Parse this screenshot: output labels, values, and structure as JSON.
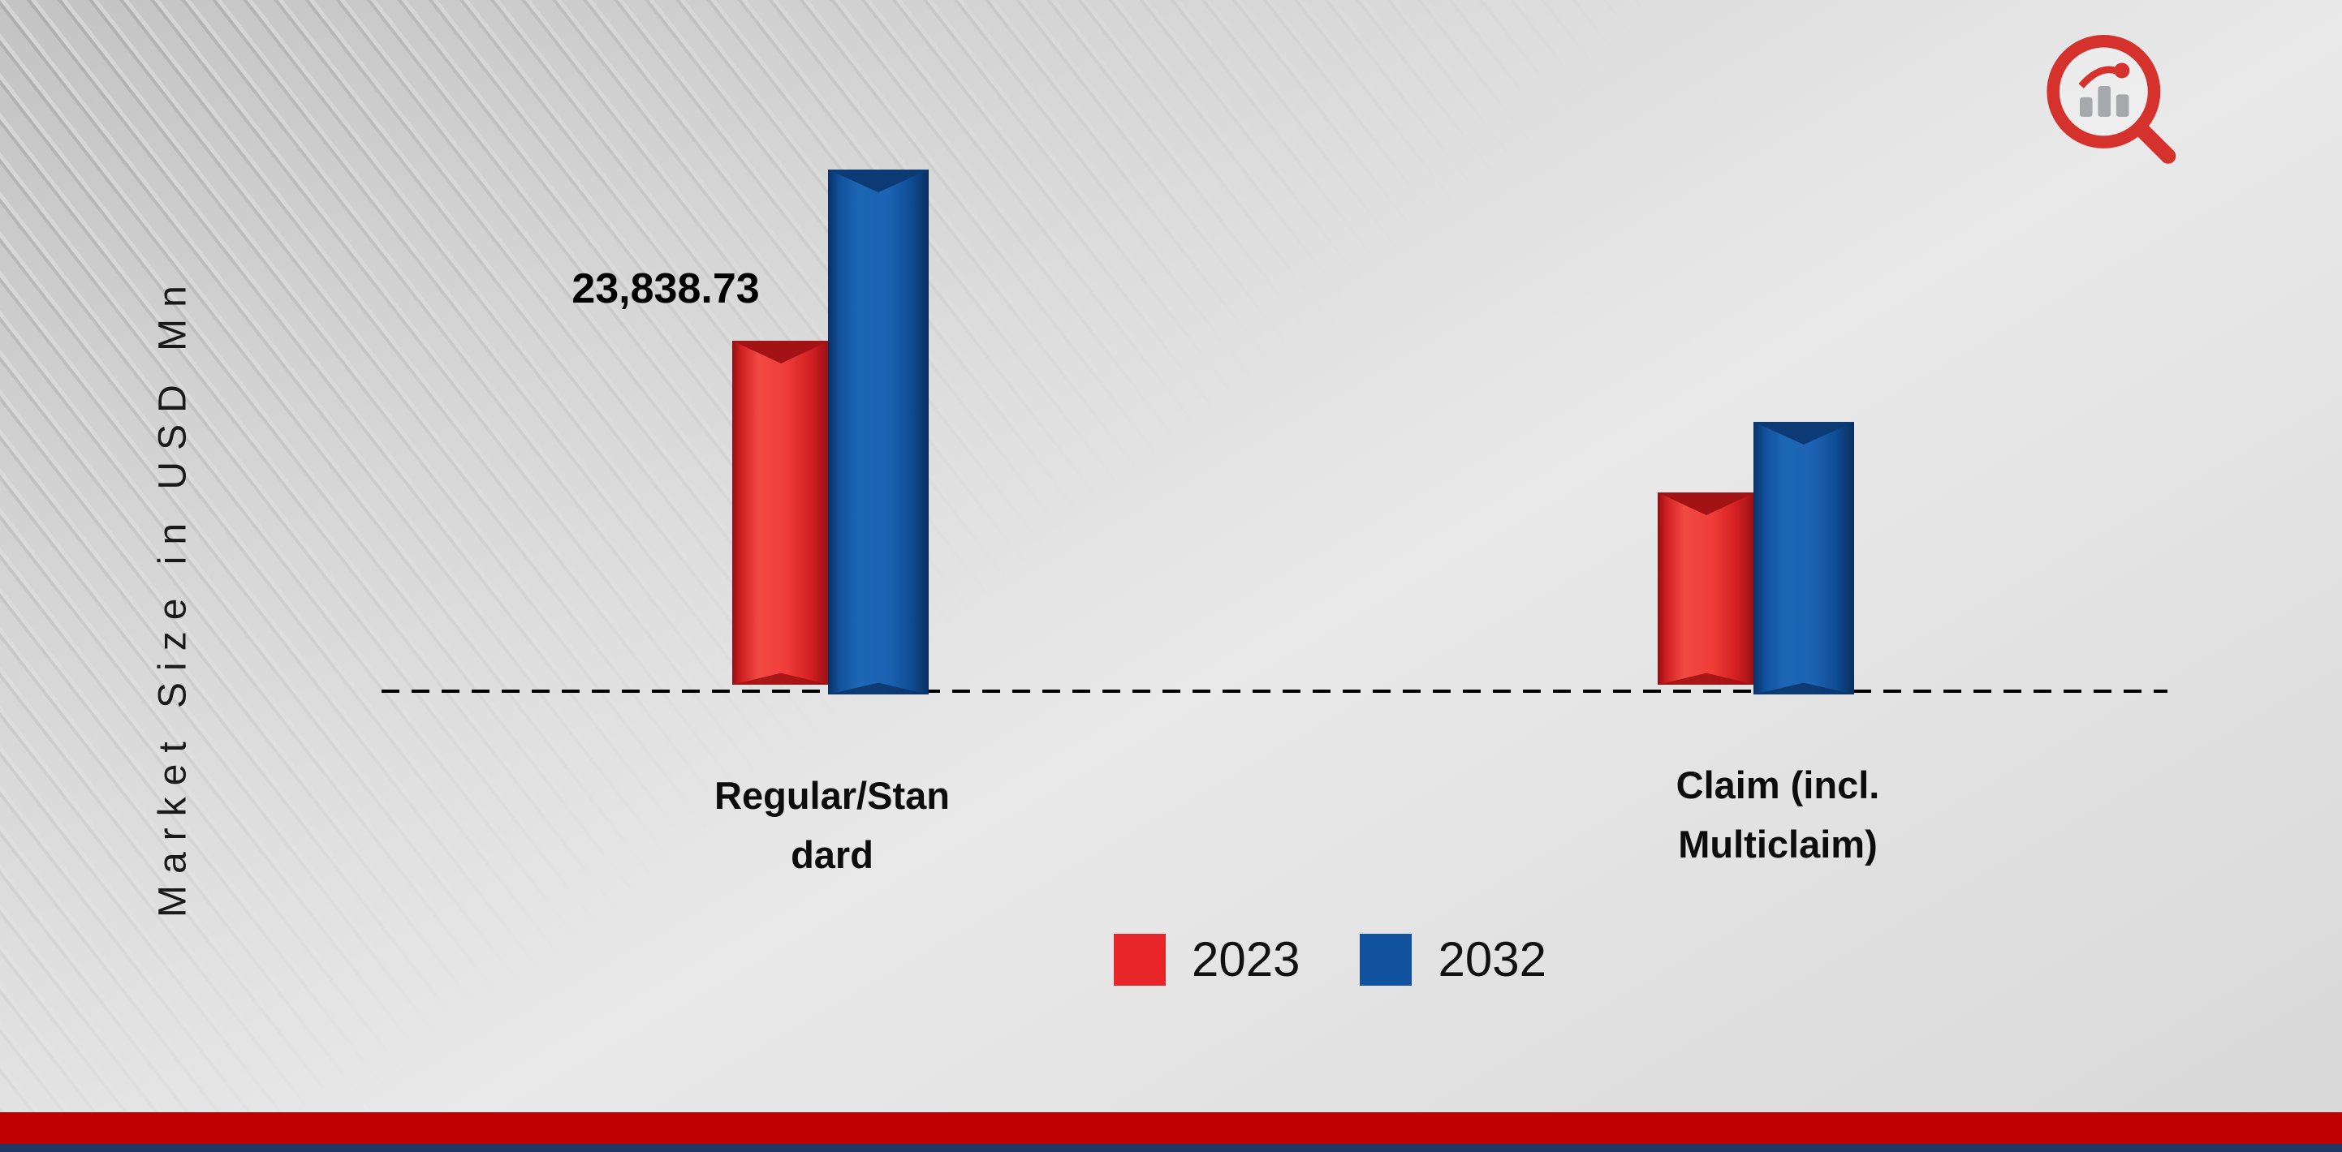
{
  "colors": {
    "series_2023": "#e8262a",
    "series_2023_dark": "#a31215",
    "series_2032": "#11529e",
    "series_2032_dark": "#0b3a74",
    "footer_red": "#c00000",
    "footer_navy": "#1f3864",
    "baseline": "#000000",
    "background": "#d9d9d9"
  },
  "chart_data": {
    "type": "bar",
    "title": "",
    "xlabel": "",
    "ylabel": "Market Size in USD Mn",
    "categories": [
      "Regular/Standard",
      "Claim (incl. Multiclaim)"
    ],
    "series": [
      {
        "name": "2023",
        "color": "#e8262a",
        "values": [
          23838.73,
          13300
        ]
      },
      {
        "name": "2032",
        "color": "#11529e",
        "values": [
          36400,
          18900
        ]
      }
    ],
    "data_labels": [
      {
        "series": "2023",
        "category": "Regular/Standard",
        "text": "23,838.73"
      }
    ],
    "ylim": [
      0,
      40000
    ],
    "grid": false,
    "legend_position": "bottom",
    "baseline_style": "dashed"
  },
  "categories_display": [
    {
      "line1": "Regular/Stan",
      "line2": "dard"
    },
    {
      "line1": "Claim (incl.",
      "line2": "Multiclaim)"
    }
  ],
  "legend": [
    {
      "label": "2023",
      "color": "#e8262a"
    },
    {
      "label": "2032",
      "color": "#11529e"
    }
  ],
  "icons": {
    "logo": "bar-chart-magnifier-logo"
  }
}
